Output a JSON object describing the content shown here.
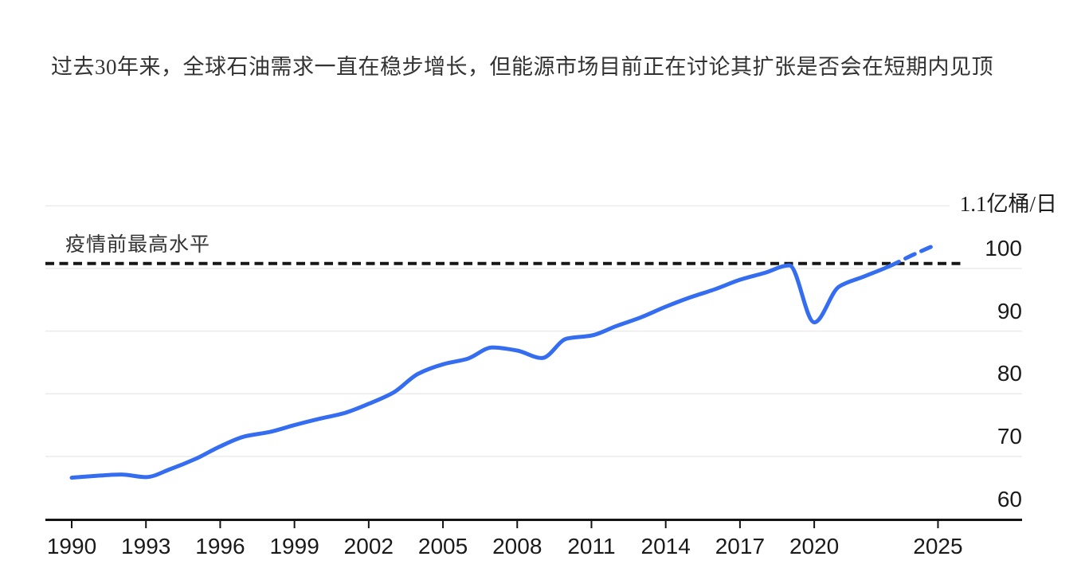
{
  "title": "过去30年来，全球石油需求一直在稳步增长，但能源市场目前正在讨论其扩张是否会在短期内见顶",
  "colors": {
    "line": "#356df0",
    "reference_dash": "#161616",
    "grid": "#ebebeb",
    "axis": "#141414",
    "text": "#1a1a1a"
  },
  "chart_data": {
    "type": "line",
    "title": "过去30年来，全球石油需求一直在稳步增长，但能源市场目前正在讨论其扩张是否会在短期内见顶",
    "unit_top_label": "1.1亿桶/日",
    "x_ticks": [
      1990,
      1993,
      1996,
      1999,
      2002,
      2005,
      2008,
      2011,
      2014,
      2017,
      2020,
      2025
    ],
    "y_ticks": [
      100,
      90,
      80,
      70,
      60
    ],
    "y_gridline_values": [
      70,
      80,
      90,
      100
    ],
    "y_top_gridline_value": 110,
    "ylim": [
      57,
      112
    ],
    "xlim": [
      1989,
      2026.5
    ],
    "grid": "horizontal-only",
    "y_tick_side": "right",
    "legend": "none",
    "years": [
      1990,
      1991,
      1992,
      1993,
      1994,
      1995,
      1996,
      1997,
      1998,
      1999,
      2000,
      2001,
      2002,
      2003,
      2004,
      2005,
      2006,
      2007,
      2008,
      2009,
      2010,
      2011,
      2012,
      2013,
      2014,
      2015,
      2016,
      2017,
      2018,
      2019,
      2020,
      2021,
      2022,
      2023
    ],
    "values": [
      66.6,
      66.9,
      67.1,
      66.7,
      68.0,
      69.6,
      71.6,
      73.2,
      73.9,
      75.0,
      76.0,
      76.9,
      78.4,
      80.2,
      83.2,
      84.7,
      85.6,
      87.4,
      86.9,
      85.7,
      88.8,
      89.3,
      90.8,
      92.2,
      93.9,
      95.4,
      96.7,
      98.2,
      99.3,
      100.5,
      91.4,
      97.1,
      98.7,
      100.3
    ],
    "forecast_years": [
      2024,
      2024.8
    ],
    "forecast_values": [
      102.2,
      103.6
    ],
    "forecast_style": "dashed",
    "reference_line": {
      "label": "疫情前最高水平",
      "value": 100.8,
      "style": "dashed-black"
    }
  }
}
